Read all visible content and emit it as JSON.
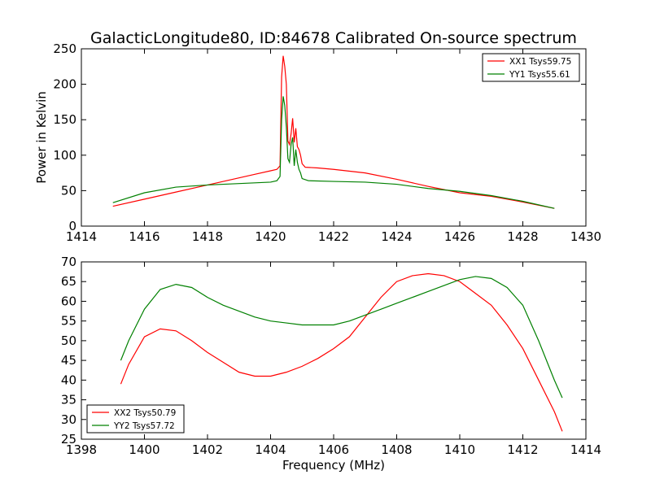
{
  "figure": {
    "title": "GalacticLongitude80, ID:84678 Calibrated On-source spectrum"
  },
  "chart_data": [
    {
      "type": "line",
      "xlabel": "",
      "ylabel": "Power in Kelvin",
      "xlim": [
        1414,
        1430
      ],
      "ylim": [
        0,
        250
      ],
      "xticks": [
        "1414",
        "1416",
        "1418",
        "1420",
        "1422",
        "1424",
        "1426",
        "1428",
        "1430"
      ],
      "yticks": [
        "0",
        "50",
        "100",
        "150",
        "200",
        "250"
      ],
      "legend_position": "top-right",
      "grid": false,
      "series": [
        {
          "name": "XX1 Tsys59.75",
          "color": "#ff0000",
          "points": [
            [
              1415.0,
              28
            ],
            [
              1416.0,
              38
            ],
            [
              1417.0,
              48
            ],
            [
              1418.0,
              58
            ],
            [
              1419.0,
              68
            ],
            [
              1419.5,
              73
            ],
            [
              1420.0,
              78
            ],
            [
              1420.2,
              80
            ],
            [
              1420.3,
              85
            ],
            [
              1420.35,
              210
            ],
            [
              1420.4,
              240
            ],
            [
              1420.45,
              225
            ],
            [
              1420.5,
              200
            ],
            [
              1420.55,
              120
            ],
            [
              1420.6,
              115
            ],
            [
              1420.65,
              130
            ],
            [
              1420.7,
              152
            ],
            [
              1420.75,
              118
            ],
            [
              1420.8,
              138
            ],
            [
              1420.85,
              112
            ],
            [
              1420.9,
              108
            ],
            [
              1420.95,
              100
            ],
            [
              1421.0,
              88
            ],
            [
              1421.1,
              83
            ],
            [
              1421.5,
              82
            ],
            [
              1422.0,
              80
            ],
            [
              1423.0,
              75
            ],
            [
              1424.0,
              66
            ],
            [
              1425.0,
              56
            ],
            [
              1426.0,
              47
            ],
            [
              1427.0,
              42
            ],
            [
              1428.0,
              34
            ],
            [
              1429.0,
              25
            ]
          ]
        },
        {
          "name": "YY1 Tsys55.61",
          "color": "#008000",
          "points": [
            [
              1415.0,
              33
            ],
            [
              1416.0,
              47
            ],
            [
              1417.0,
              55
            ],
            [
              1418.0,
              58
            ],
            [
              1419.0,
              60
            ],
            [
              1420.0,
              62
            ],
            [
              1420.2,
              64
            ],
            [
              1420.3,
              70
            ],
            [
              1420.35,
              150
            ],
            [
              1420.4,
              183
            ],
            [
              1420.45,
              170
            ],
            [
              1420.5,
              140
            ],
            [
              1420.55,
              95
            ],
            [
              1420.6,
              90
            ],
            [
              1420.65,
              115
            ],
            [
              1420.7,
              125
            ],
            [
              1420.75,
              85
            ],
            [
              1420.8,
              108
            ],
            [
              1420.85,
              90
            ],
            [
              1420.9,
              80
            ],
            [
              1420.95,
              75
            ],
            [
              1421.0,
              67
            ],
            [
              1421.2,
              64
            ],
            [
              1422.0,
              63
            ],
            [
              1423.0,
              62
            ],
            [
              1424.0,
              59
            ],
            [
              1425.0,
              53
            ],
            [
              1426.0,
              49
            ],
            [
              1427.0,
              43
            ],
            [
              1428.0,
              35
            ],
            [
              1429.0,
              25
            ]
          ]
        }
      ]
    },
    {
      "type": "line",
      "xlabel": "Frequency (MHz)",
      "ylabel": "",
      "xlim": [
        1398,
        1414
      ],
      "ylim": [
        25,
        70
      ],
      "xticks": [
        "1398",
        "1400",
        "1402",
        "1404",
        "1406",
        "1408",
        "1410",
        "1412",
        "1414"
      ],
      "yticks": [
        "25",
        "30",
        "35",
        "40",
        "45",
        "50",
        "55",
        "60",
        "65",
        "70"
      ],
      "legend_position": "bottom-left",
      "grid": false,
      "series": [
        {
          "name": "XX2 Tsys50.79",
          "color": "#ff0000",
          "points": [
            [
              1399.25,
              39
            ],
            [
              1399.5,
              44
            ],
            [
              1400.0,
              51
            ],
            [
              1400.5,
              53
            ],
            [
              1401.0,
              52.5
            ],
            [
              1401.5,
              50
            ],
            [
              1402.0,
              47
            ],
            [
              1402.5,
              44.5
            ],
            [
              1403.0,
              42
            ],
            [
              1403.5,
              41
            ],
            [
              1404.0,
              41
            ],
            [
              1404.5,
              42
            ],
            [
              1405.0,
              43.5
            ],
            [
              1405.5,
              45.5
            ],
            [
              1406.0,
              48
            ],
            [
              1406.5,
              51
            ],
            [
              1407.0,
              56
            ],
            [
              1407.5,
              61
            ],
            [
              1408.0,
              65
            ],
            [
              1408.5,
              66.5
            ],
            [
              1409.0,
              67
            ],
            [
              1409.5,
              66.5
            ],
            [
              1410.0,
              65
            ],
            [
              1410.5,
              62
            ],
            [
              1411.0,
              59
            ],
            [
              1411.5,
              54
            ],
            [
              1412.0,
              48
            ],
            [
              1412.5,
              40
            ],
            [
              1413.0,
              32
            ],
            [
              1413.25,
              27
            ]
          ]
        },
        {
          "name": "YY2 Tsys57.72",
          "color": "#008000",
          "points": [
            [
              1399.25,
              45
            ],
            [
              1399.5,
              50
            ],
            [
              1400.0,
              58
            ],
            [
              1400.5,
              63
            ],
            [
              1401.0,
              64.3
            ],
            [
              1401.5,
              63.5
            ],
            [
              1402.0,
              61
            ],
            [
              1402.5,
              59
            ],
            [
              1403.0,
              57.5
            ],
            [
              1403.5,
              56
            ],
            [
              1404.0,
              55
            ],
            [
              1404.5,
              54.5
            ],
            [
              1405.0,
              54
            ],
            [
              1405.5,
              54
            ],
            [
              1406.0,
              54
            ],
            [
              1406.5,
              55
            ],
            [
              1407.0,
              56.5
            ],
            [
              1407.5,
              58
            ],
            [
              1408.0,
              59.5
            ],
            [
              1408.5,
              61
            ],
            [
              1409.0,
              62.5
            ],
            [
              1409.5,
              64
            ],
            [
              1410.0,
              65.5
            ],
            [
              1410.5,
              66.3
            ],
            [
              1411.0,
              65.8
            ],
            [
              1411.5,
              63.5
            ],
            [
              1412.0,
              59
            ],
            [
              1412.5,
              50
            ],
            [
              1413.0,
              40
            ],
            [
              1413.25,
              35.5
            ]
          ]
        }
      ]
    }
  ]
}
